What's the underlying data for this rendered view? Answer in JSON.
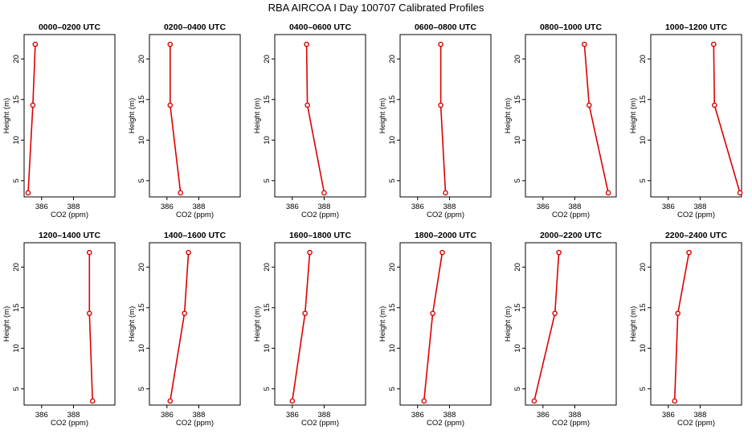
{
  "figure": {
    "title": "RBA AIRCOA I  Day 100707  Calibrated Profiles"
  },
  "colors": {
    "series": "#dd0000",
    "axes": "#000000",
    "background": "#ffffff"
  },
  "chart_data": [
    {
      "type": "line",
      "title": "0000–0200 UTC",
      "xlabel": "CO2 (ppm)",
      "ylabel": "Height (m)",
      "xlim": [
        384.9,
        390.6
      ],
      "ylim": [
        3.0,
        23.0
      ],
      "xticks": [
        386,
        388
      ],
      "xtick_labels": [
        "386",
        "388"
      ],
      "yticks": [
        5,
        10,
        15,
        20
      ],
      "ytick_labels": [
        "5",
        "10",
        "15",
        "20"
      ],
      "x": [
        385.15,
        385.45,
        385.6
      ],
      "y": [
        3.5,
        14.3,
        21.8
      ]
    },
    {
      "type": "line",
      "title": "0200–0400 UTC",
      "xlabel": "CO2 (ppm)",
      "ylabel": "Height (m)",
      "xlim": [
        384.9,
        390.6
      ],
      "ylim": [
        3.0,
        23.0
      ],
      "xticks": [
        386,
        388
      ],
      "xtick_labels": [
        "386",
        "388"
      ],
      "yticks": [
        5,
        10,
        15,
        20
      ],
      "ytick_labels": [
        "5",
        "10",
        "15",
        "20"
      ],
      "x": [
        386.85,
        386.2,
        386.2
      ],
      "y": [
        3.5,
        14.3,
        21.8
      ]
    },
    {
      "type": "line",
      "title": "0400–0600 UTC",
      "xlabel": "CO2 (ppm)",
      "ylabel": "Height (m)",
      "xlim": [
        384.9,
        390.6
      ],
      "ylim": [
        3.0,
        23.0
      ],
      "xticks": [
        386,
        388
      ],
      "xtick_labels": [
        "386",
        "388"
      ],
      "yticks": [
        5,
        10,
        15,
        20
      ],
      "ytick_labels": [
        "5",
        "10",
        "15",
        "20"
      ],
      "x": [
        388.0,
        386.95,
        386.9
      ],
      "y": [
        3.5,
        14.3,
        21.8
      ]
    },
    {
      "type": "line",
      "title": "0600–0800 UTC",
      "xlabel": "CO2 (ppm)",
      "ylabel": "Height (m)",
      "xlim": [
        384.9,
        390.6
      ],
      "ylim": [
        3.0,
        23.0
      ],
      "xticks": [
        386,
        388
      ],
      "xtick_labels": [
        "386",
        "388"
      ],
      "yticks": [
        5,
        10,
        15,
        20
      ],
      "ytick_labels": [
        "5",
        "10",
        "15",
        "20"
      ],
      "x": [
        387.75,
        387.45,
        387.45
      ],
      "y": [
        3.5,
        14.3,
        21.8
      ]
    },
    {
      "type": "line",
      "title": "0800–1000 UTC",
      "xlabel": "CO2 (ppm)",
      "ylabel": "Height (m)",
      "xlim": [
        384.9,
        390.6
      ],
      "ylim": [
        3.0,
        23.0
      ],
      "xticks": [
        386,
        388
      ],
      "xtick_labels": [
        "386",
        "388"
      ],
      "yticks": [
        5,
        10,
        15,
        20
      ],
      "ytick_labels": [
        "5",
        "10",
        "15",
        "20"
      ],
      "x": [
        390.1,
        388.9,
        388.6
      ],
      "y": [
        3.5,
        14.3,
        21.8
      ]
    },
    {
      "type": "line",
      "title": "1000–1200 UTC",
      "xlabel": "CO2 (ppm)",
      "ylabel": "Height (m)",
      "xlim": [
        384.9,
        390.6
      ],
      "ylim": [
        3.0,
        23.0
      ],
      "xticks": [
        386,
        388
      ],
      "xtick_labels": [
        "386",
        "388"
      ],
      "yticks": [
        5,
        10,
        15,
        20
      ],
      "ytick_labels": [
        "5",
        "10",
        "15",
        "20"
      ],
      "x": [
        390.5,
        388.9,
        388.85
      ],
      "y": [
        3.5,
        14.3,
        21.8
      ]
    },
    {
      "type": "line",
      "title": "1200–1400 UTC",
      "xlabel": "CO2 (ppm)",
      "ylabel": "Height (m)",
      "xlim": [
        384.9,
        390.6
      ],
      "ylim": [
        3.0,
        23.0
      ],
      "xticks": [
        386,
        388
      ],
      "xtick_labels": [
        "386",
        "388"
      ],
      "yticks": [
        5,
        10,
        15,
        20
      ],
      "ytick_labels": [
        "5",
        "10",
        "15",
        "20"
      ],
      "x": [
        389.2,
        389.0,
        389.0
      ],
      "y": [
        3.5,
        14.3,
        21.8
      ]
    },
    {
      "type": "line",
      "title": "1400–1600 UTC",
      "xlabel": "CO2 (ppm)",
      "ylabel": "Height (m)",
      "xlim": [
        384.9,
        390.6
      ],
      "ylim": [
        3.0,
        23.0
      ],
      "xticks": [
        386,
        388
      ],
      "xtick_labels": [
        "386",
        "388"
      ],
      "yticks": [
        5,
        10,
        15,
        20
      ],
      "ytick_labels": [
        "5",
        "10",
        "15",
        "20"
      ],
      "x": [
        386.2,
        387.1,
        387.35
      ],
      "y": [
        3.5,
        14.3,
        21.8
      ]
    },
    {
      "type": "line",
      "title": "1600–1800 UTC",
      "xlabel": "CO2 (ppm)",
      "ylabel": "Height (m)",
      "xlim": [
        384.9,
        390.6
      ],
      "ylim": [
        3.0,
        23.0
      ],
      "xticks": [
        386,
        388
      ],
      "xtick_labels": [
        "386",
        "388"
      ],
      "yticks": [
        5,
        10,
        15,
        20
      ],
      "ytick_labels": [
        "5",
        "10",
        "15",
        "20"
      ],
      "x": [
        386.0,
        386.8,
        387.1
      ],
      "y": [
        3.5,
        14.3,
        21.8
      ]
    },
    {
      "type": "line",
      "title": "1800–2000 UTC",
      "xlabel": "CO2 (ppm)",
      "ylabel": "Height (m)",
      "xlim": [
        384.9,
        390.6
      ],
      "ylim": [
        3.0,
        23.0
      ],
      "xticks": [
        386,
        388
      ],
      "xtick_labels": [
        "386",
        "388"
      ],
      "yticks": [
        5,
        10,
        15,
        20
      ],
      "ytick_labels": [
        "5",
        "10",
        "15",
        "20"
      ],
      "x": [
        386.4,
        386.95,
        387.55
      ],
      "y": [
        3.5,
        14.3,
        21.8
      ]
    },
    {
      "type": "line",
      "title": "2000–2200 UTC",
      "xlabel": "CO2 (ppm)",
      "ylabel": "Height (m)",
      "xlim": [
        384.9,
        390.6
      ],
      "ylim": [
        3.0,
        23.0
      ],
      "xticks": [
        386,
        388
      ],
      "xtick_labels": [
        "386",
        "388"
      ],
      "yticks": [
        5,
        10,
        15,
        20
      ],
      "ytick_labels": [
        "5",
        "10",
        "15",
        "20"
      ],
      "x": [
        385.45,
        386.75,
        387.0
      ],
      "y": [
        3.5,
        14.3,
        21.8
      ]
    },
    {
      "type": "line",
      "title": "2200–2400 UTC",
      "xlabel": "CO2 (ppm)",
      "ylabel": "Height (m)",
      "xlim": [
        384.9,
        390.6
      ],
      "ylim": [
        3.0,
        23.0
      ],
      "xticks": [
        386,
        388
      ],
      "xtick_labels": [
        "386",
        "388"
      ],
      "yticks": [
        5,
        10,
        15,
        20
      ],
      "ytick_labels": [
        "5",
        "10",
        "15",
        "20"
      ],
      "x": [
        386.4,
        386.6,
        387.3
      ],
      "y": [
        3.5,
        14.3,
        21.8
      ]
    }
  ]
}
